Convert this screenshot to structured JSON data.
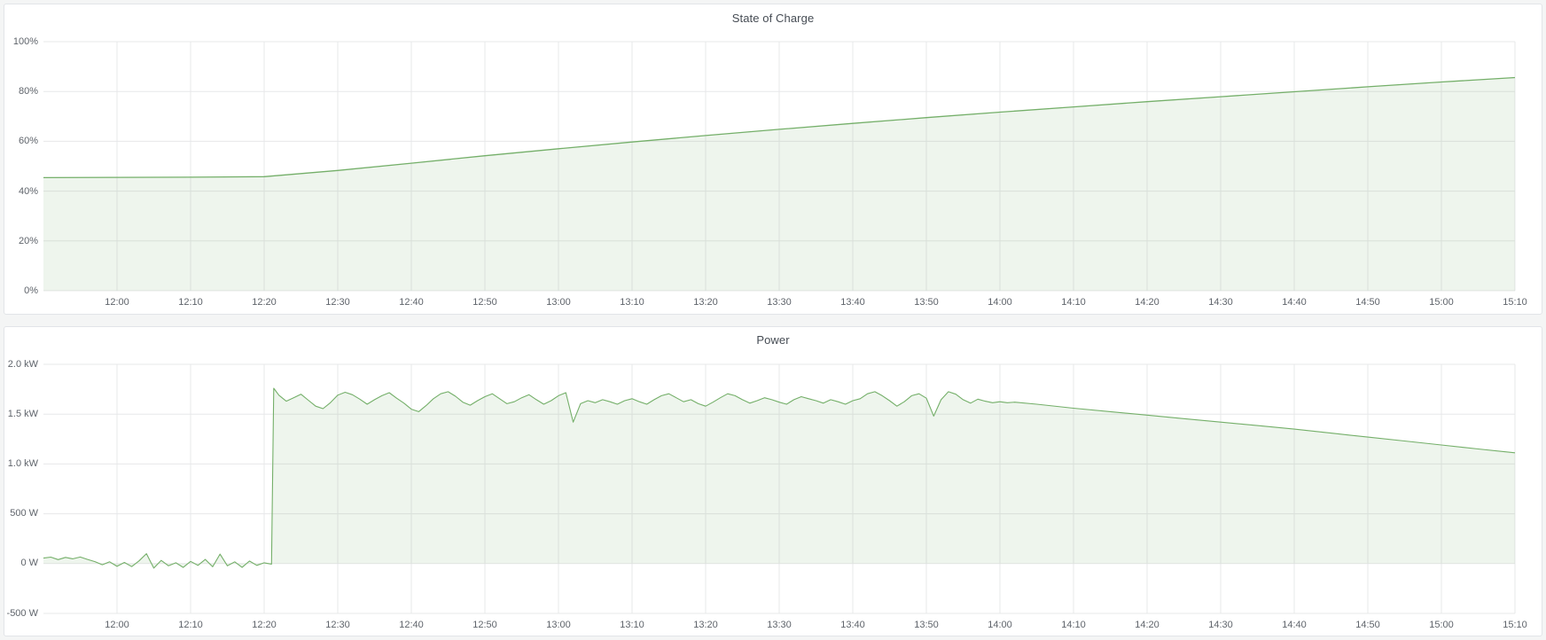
{
  "page": {
    "background": "#f4f5f5",
    "panel_background": "#ffffff",
    "panel_border": "#e2e4e8",
    "grid_color": "#e7e8ea",
    "tick_color": "#5f646b",
    "title_color": "#464c54",
    "accent_green": "#74af69",
    "fill_green": "rgba(116,175,105,0.12)"
  },
  "chart_data": [
    {
      "type": "area",
      "title": "State of Charge",
      "name": "state-of-charge-chart",
      "ylabel": "",
      "xlabel": "",
      "unit": "percent",
      "grid": true,
      "legend": "none",
      "line_color": "#74af69",
      "fill_color": "rgba(116,175,105,0.12)",
      "line_width": 1.3,
      "ylim": [
        0,
        100
      ],
      "baseline": 0,
      "xlim_minutes": [
        0,
        200
      ],
      "x_time_span": "11:50 to 15:10",
      "yticks": [
        {
          "v": 0,
          "label": "0%"
        },
        {
          "v": 20,
          "label": "20%"
        },
        {
          "v": 40,
          "label": "40%"
        },
        {
          "v": 60,
          "label": "60%"
        },
        {
          "v": 80,
          "label": "80%"
        },
        {
          "v": 100,
          "label": "100%"
        }
      ],
      "xticks": [
        {
          "m": 10,
          "label": "12:00"
        },
        {
          "m": 20,
          "label": "12:10"
        },
        {
          "m": 30,
          "label": "12:20"
        },
        {
          "m": 40,
          "label": "12:30"
        },
        {
          "m": 50,
          "label": "12:40"
        },
        {
          "m": 60,
          "label": "12:50"
        },
        {
          "m": 70,
          "label": "13:00"
        },
        {
          "m": 80,
          "label": "13:10"
        },
        {
          "m": 90,
          "label": "13:20"
        },
        {
          "m": 100,
          "label": "13:30"
        },
        {
          "m": 110,
          "label": "13:40"
        },
        {
          "m": 120,
          "label": "13:50"
        },
        {
          "m": 130,
          "label": "14:00"
        },
        {
          "m": 140,
          "label": "14:10"
        },
        {
          "m": 150,
          "label": "14:20"
        },
        {
          "m": 160,
          "label": "14:30"
        },
        {
          "m": 170,
          "label": "14:40"
        },
        {
          "m": 180,
          "label": "14:50"
        },
        {
          "m": 190,
          "label": "15:00"
        },
        {
          "m": 200,
          "label": "15:10"
        }
      ],
      "points": [
        [
          0,
          45.4
        ],
        [
          10,
          45.5
        ],
        [
          20,
          45.6
        ],
        [
          30,
          45.8
        ],
        [
          40,
          48.3
        ],
        [
          50,
          51.2
        ],
        [
          60,
          54.2
        ],
        [
          70,
          57.0
        ],
        [
          80,
          59.7
        ],
        [
          90,
          62.3
        ],
        [
          100,
          64.8
        ],
        [
          110,
          67.2
        ],
        [
          120,
          69.5
        ],
        [
          130,
          71.7
        ],
        [
          140,
          73.8
        ],
        [
          150,
          75.9
        ],
        [
          160,
          77.9
        ],
        [
          170,
          79.9
        ],
        [
          180,
          81.9
        ],
        [
          190,
          83.8
        ],
        [
          200,
          85.6
        ]
      ]
    },
    {
      "type": "area",
      "title": "Power",
      "name": "power-chart",
      "ylabel": "",
      "xlabel": "",
      "unit": "watts",
      "grid": true,
      "legend": "none",
      "line_color": "#74af69",
      "fill_color": "rgba(116,175,105,0.12)",
      "line_width": 1.1,
      "ylim": [
        -500,
        2000
      ],
      "baseline": 0,
      "xlim_minutes": [
        0,
        200
      ],
      "x_time_span": "11:50 to 15:10",
      "yticks": [
        {
          "v": -500,
          "label": "-500 W"
        },
        {
          "v": 0,
          "label": "0 W"
        },
        {
          "v": 500,
          "label": "500 W"
        },
        {
          "v": 1000,
          "label": "1.0 kW"
        },
        {
          "v": 1500,
          "label": "1.5 kW"
        },
        {
          "v": 2000,
          "label": "2.0 kW"
        }
      ],
      "xticks": [
        {
          "m": 10,
          "label": "12:00"
        },
        {
          "m": 20,
          "label": "12:10"
        },
        {
          "m": 30,
          "label": "12:20"
        },
        {
          "m": 40,
          "label": "12:30"
        },
        {
          "m": 50,
          "label": "12:40"
        },
        {
          "m": 60,
          "label": "12:50"
        },
        {
          "m": 70,
          "label": "13:00"
        },
        {
          "m": 80,
          "label": "13:10"
        },
        {
          "m": 90,
          "label": "13:20"
        },
        {
          "m": 100,
          "label": "13:30"
        },
        {
          "m": 110,
          "label": "13:40"
        },
        {
          "m": 120,
          "label": "13:50"
        },
        {
          "m": 130,
          "label": "14:00"
        },
        {
          "m": 140,
          "label": "14:10"
        },
        {
          "m": 150,
          "label": "14:20"
        },
        {
          "m": 160,
          "label": "14:30"
        },
        {
          "m": 170,
          "label": "14:40"
        },
        {
          "m": 180,
          "label": "14:50"
        },
        {
          "m": 190,
          "label": "15:00"
        },
        {
          "m": 200,
          "label": "15:10"
        }
      ],
      "points": [
        [
          0,
          55
        ],
        [
          1,
          65
        ],
        [
          2,
          40
        ],
        [
          3,
          62
        ],
        [
          4,
          48
        ],
        [
          5,
          66
        ],
        [
          6,
          42
        ],
        [
          7,
          20
        ],
        [
          8,
          -12
        ],
        [
          9,
          18
        ],
        [
          10,
          -28
        ],
        [
          11,
          12
        ],
        [
          12,
          -30
        ],
        [
          13,
          28
        ],
        [
          14,
          100
        ],
        [
          15,
          -45
        ],
        [
          16,
          32
        ],
        [
          17,
          -22
        ],
        [
          18,
          8
        ],
        [
          19,
          -38
        ],
        [
          20,
          22
        ],
        [
          21,
          -18
        ],
        [
          22,
          42
        ],
        [
          23,
          -32
        ],
        [
          24,
          95
        ],
        [
          25,
          -22
        ],
        [
          26,
          18
        ],
        [
          27,
          -38
        ],
        [
          28,
          26
        ],
        [
          29,
          -18
        ],
        [
          30,
          8
        ],
        [
          31,
          -5
        ],
        [
          31.3,
          1760
        ],
        [
          32,
          1690
        ],
        [
          33,
          1630
        ],
        [
          34,
          1665
        ],
        [
          35,
          1700
        ],
        [
          36,
          1640
        ],
        [
          37,
          1580
        ],
        [
          38,
          1555
        ],
        [
          39,
          1615
        ],
        [
          40,
          1690
        ],
        [
          41,
          1720
        ],
        [
          42,
          1695
        ],
        [
          43,
          1650
        ],
        [
          44,
          1600
        ],
        [
          45,
          1645
        ],
        [
          46,
          1685
        ],
        [
          47,
          1715
        ],
        [
          48,
          1660
        ],
        [
          49,
          1610
        ],
        [
          50,
          1550
        ],
        [
          51,
          1525
        ],
        [
          52,
          1585
        ],
        [
          53,
          1655
        ],
        [
          54,
          1705
        ],
        [
          55,
          1725
        ],
        [
          56,
          1680
        ],
        [
          57,
          1620
        ],
        [
          58,
          1590
        ],
        [
          59,
          1635
        ],
        [
          60,
          1675
        ],
        [
          61,
          1705
        ],
        [
          62,
          1655
        ],
        [
          63,
          1605
        ],
        [
          64,
          1625
        ],
        [
          65,
          1665
        ],
        [
          66,
          1695
        ],
        [
          67,
          1645
        ],
        [
          68,
          1600
        ],
        [
          69,
          1635
        ],
        [
          70,
          1685
        ],
        [
          71,
          1715
        ],
        [
          72,
          1420
        ],
        [
          73,
          1605
        ],
        [
          74,
          1635
        ],
        [
          75,
          1615
        ],
        [
          76,
          1645
        ],
        [
          77,
          1625
        ],
        [
          78,
          1600
        ],
        [
          79,
          1635
        ],
        [
          80,
          1655
        ],
        [
          81,
          1625
        ],
        [
          82,
          1600
        ],
        [
          83,
          1645
        ],
        [
          84,
          1685
        ],
        [
          85,
          1705
        ],
        [
          86,
          1665
        ],
        [
          87,
          1625
        ],
        [
          88,
          1645
        ],
        [
          89,
          1605
        ],
        [
          90,
          1580
        ],
        [
          91,
          1620
        ],
        [
          92,
          1665
        ],
        [
          93,
          1705
        ],
        [
          94,
          1685
        ],
        [
          95,
          1645
        ],
        [
          96,
          1610
        ],
        [
          97,
          1635
        ],
        [
          98,
          1665
        ],
        [
          99,
          1645
        ],
        [
          100,
          1620
        ],
        [
          101,
          1600
        ],
        [
          102,
          1645
        ],
        [
          103,
          1675
        ],
        [
          104,
          1655
        ],
        [
          105,
          1635
        ],
        [
          106,
          1610
        ],
        [
          107,
          1645
        ],
        [
          108,
          1625
        ],
        [
          109,
          1600
        ],
        [
          110,
          1635
        ],
        [
          111,
          1655
        ],
        [
          112,
          1705
        ],
        [
          113,
          1725
        ],
        [
          114,
          1685
        ],
        [
          115,
          1635
        ],
        [
          116,
          1580
        ],
        [
          117,
          1625
        ],
        [
          118,
          1685
        ],
        [
          119,
          1705
        ],
        [
          120,
          1660
        ],
        [
          121,
          1480
        ],
        [
          122,
          1645
        ],
        [
          123,
          1725
        ],
        [
          124,
          1700
        ],
        [
          125,
          1645
        ],
        [
          126,
          1610
        ],
        [
          127,
          1650
        ],
        [
          128,
          1630
        ],
        [
          129,
          1615
        ],
        [
          130,
          1625
        ],
        [
          131,
          1615
        ],
        [
          132,
          1620
        ],
        [
          135,
          1600
        ],
        [
          140,
          1560
        ],
        [
          145,
          1525
        ],
        [
          150,
          1490
        ],
        [
          155,
          1455
        ],
        [
          160,
          1420
        ],
        [
          165,
          1385
        ],
        [
          170,
          1350
        ],
        [
          175,
          1310
        ],
        [
          180,
          1270
        ],
        [
          185,
          1230
        ],
        [
          190,
          1190
        ],
        [
          195,
          1150
        ],
        [
          200,
          1112
        ]
      ]
    }
  ]
}
